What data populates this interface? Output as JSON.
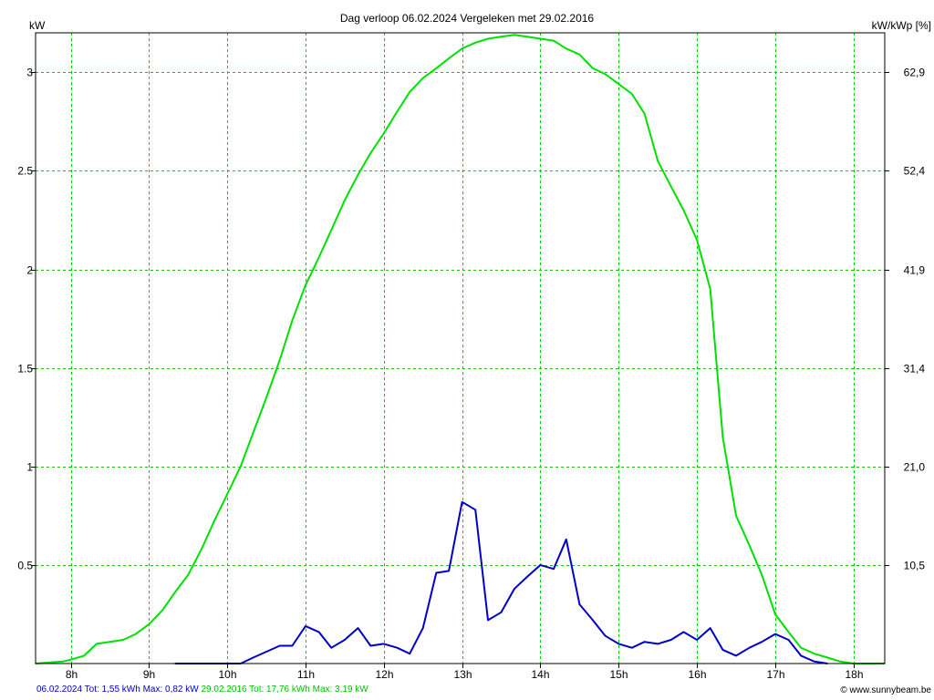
{
  "chart_data": {
    "type": "line",
    "title": "Dag  verloop 06.02.2024   Vergeleken met 29.02.2016",
    "ylabel_left": "kW",
    "ylabel_right": "kW/kWp [%]",
    "xlim": [
      7.55,
      18.4
    ],
    "ylim": [
      0,
      3.2
    ],
    "grid": true,
    "x_ticks": [
      {
        "value": 8,
        "label": "8h"
      },
      {
        "value": 9,
        "label": "9h"
      },
      {
        "value": 10,
        "label": "10h"
      },
      {
        "value": 11,
        "label": "11h"
      },
      {
        "value": 12,
        "label": "12h"
      },
      {
        "value": 13,
        "label": "13h"
      },
      {
        "value": 14,
        "label": "14h"
      },
      {
        "value": 15,
        "label": "15h"
      },
      {
        "value": 16,
        "label": "16h"
      },
      {
        "value": 17,
        "label": "17h"
      },
      {
        "value": 18,
        "label": "18h"
      }
    ],
    "y_ticks_left": [
      {
        "value": 0.5,
        "label": "0.5"
      },
      {
        "value": 1,
        "label": "1"
      },
      {
        "value": 1.5,
        "label": "1.5"
      },
      {
        "value": 2,
        "label": "2"
      },
      {
        "value": 2.5,
        "label": "2.5"
      },
      {
        "value": 3,
        "label": "3"
      }
    ],
    "y_ticks_right": [
      {
        "value": 0.5,
        "label": "10,5"
      },
      {
        "value": 1,
        "label": "21,0"
      },
      {
        "value": 1.5,
        "label": "31,4"
      },
      {
        "value": 2,
        "label": "41,9"
      },
      {
        "value": 2.5,
        "label": "52,4"
      },
      {
        "value": 3,
        "label": "62,9"
      }
    ],
    "series": [
      {
        "name": "29.02.2016",
        "color": "#00e000",
        "x": [
          7.55,
          7.9,
          8.0,
          8.17,
          8.33,
          8.5,
          8.67,
          8.83,
          9.0,
          9.17,
          9.33,
          9.5,
          9.67,
          9.83,
          10.0,
          10.17,
          10.33,
          10.5,
          10.67,
          10.83,
          11.0,
          11.17,
          11.33,
          11.5,
          11.67,
          11.83,
          12.0,
          12.17,
          12.33,
          12.5,
          12.67,
          12.83,
          13.0,
          13.17,
          13.33,
          13.5,
          13.67,
          13.83,
          14.0,
          14.17,
          14.33,
          14.5,
          14.67,
          14.83,
          15.0,
          15.17,
          15.33,
          15.5,
          15.67,
          15.83,
          16.0,
          16.17,
          16.33,
          16.5,
          16.67,
          16.83,
          17.0,
          17.17,
          17.33,
          17.5,
          17.67,
          17.83,
          18.0,
          18.17,
          18.4
        ],
        "values": [
          0.0,
          0.01,
          0.02,
          0.04,
          0.1,
          0.11,
          0.12,
          0.15,
          0.2,
          0.27,
          0.36,
          0.45,
          0.58,
          0.72,
          0.86,
          1.0,
          1.17,
          1.35,
          1.54,
          1.74,
          1.92,
          2.06,
          2.2,
          2.35,
          2.48,
          2.59,
          2.69,
          2.8,
          2.9,
          2.97,
          3.02,
          3.07,
          3.12,
          3.15,
          3.17,
          3.18,
          3.19,
          3.18,
          3.17,
          3.16,
          3.12,
          3.09,
          3.02,
          2.99,
          2.94,
          2.89,
          2.79,
          2.55,
          2.42,
          2.3,
          2.15,
          1.9,
          1.15,
          0.75,
          0.6,
          0.45,
          0.25,
          0.16,
          0.08,
          0.05,
          0.03,
          0.01,
          0.0,
          0.0,
          0.0
        ],
        "legend": "29.02.2016 Tot: 17,76 kWh Max: 3,19 kW"
      },
      {
        "name": "06.02.2024",
        "color": "#0000c8",
        "x": [
          9.33,
          10.17,
          10.33,
          10.5,
          10.67,
          10.83,
          11.0,
          11.17,
          11.33,
          11.5,
          11.67,
          11.83,
          12.0,
          12.17,
          12.33,
          12.5,
          12.67,
          12.83,
          13.0,
          13.17,
          13.33,
          13.5,
          13.67,
          13.83,
          14.0,
          14.17,
          14.33,
          14.5,
          14.67,
          14.83,
          15.0,
          15.17,
          15.33,
          15.5,
          15.67,
          15.83,
          16.0,
          16.17,
          16.33,
          16.5,
          16.67,
          16.83,
          17.0,
          17.17,
          17.33,
          17.5,
          17.67
        ],
        "values": [
          0.0,
          0.0,
          0.03,
          0.06,
          0.09,
          0.09,
          0.19,
          0.16,
          0.08,
          0.12,
          0.18,
          0.09,
          0.1,
          0.08,
          0.05,
          0.18,
          0.46,
          0.47,
          0.82,
          0.78,
          0.22,
          0.26,
          0.38,
          0.44,
          0.5,
          0.48,
          0.63,
          0.3,
          0.22,
          0.14,
          0.1,
          0.08,
          0.11,
          0.1,
          0.12,
          0.16,
          0.12,
          0.18,
          0.07,
          0.04,
          0.08,
          0.11,
          0.15,
          0.12,
          0.04,
          0.01,
          0.0
        ],
        "legend": "06.02.2024 Tot: 1,55 kWh Max: 0,82 kW"
      }
    ]
  },
  "credit": "© www.sunnybeam.be"
}
